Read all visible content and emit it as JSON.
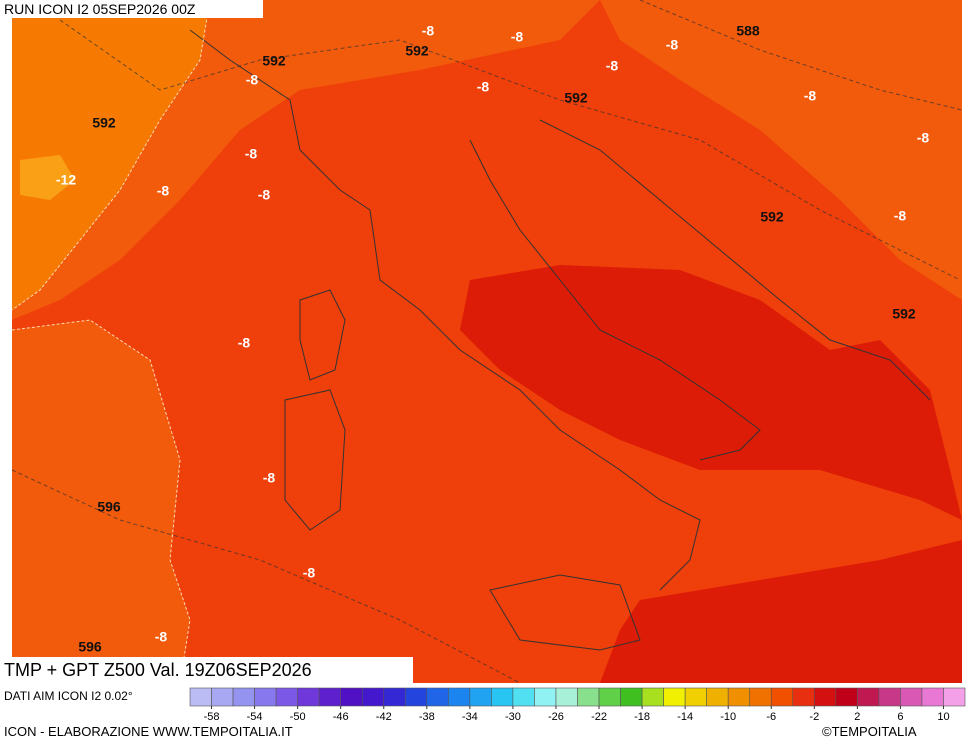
{
  "header": {
    "run": "RUN ICON I2 05SEP2026 00Z"
  },
  "map": {
    "contour_labels": [
      "592",
      "-8",
      "-8",
      "592",
      "-8",
      "-8",
      "588",
      "-8",
      "-8",
      "592",
      "-8",
      "592",
      "-8",
      "-8",
      "-12",
      "-8",
      "-8",
      "592",
      "-8",
      "592",
      "-8",
      "-8",
      "596",
      "-8",
      "-8",
      "596"
    ]
  },
  "footer": {
    "title": "TMP + GPT Z500 Val. 19Z06SEP2026",
    "source": "DATI AIM ICON I2 0.02°",
    "credit": "ICON - ELABORAZIONE WWW.TEMPOITALIA.IT",
    "copyright": "©TEMPOITALIA"
  },
  "colorbar": {
    "ticks": [
      -58,
      -54,
      -50,
      -46,
      -42,
      -38,
      -34,
      -30,
      -26,
      -22,
      -18,
      -14,
      -10,
      -6,
      -2,
      2,
      6,
      10
    ],
    "colors": [
      "#bcbcf4",
      "#a8a8f2",
      "#9494f0",
      "#8878ee",
      "#7c58e6",
      "#6e38da",
      "#5e20cc",
      "#5010c4",
      "#4418cc",
      "#3428d4",
      "#2444de",
      "#2064e8",
      "#1c84ee",
      "#20a4f2",
      "#28c4f2",
      "#50e0f2",
      "#90f2f2",
      "#a8f0d8",
      "#88e08c",
      "#60d048",
      "#40c020",
      "#a8e020",
      "#f0f000",
      "#f0d000",
      "#f0b000",
      "#f09000",
      "#f07000",
      "#f05000",
      "#e83010",
      "#d41010",
      "#c00018",
      "#c01850",
      "#c83888",
      "#d858b4",
      "#e878d4",
      "#f4a0e8"
    ]
  }
}
